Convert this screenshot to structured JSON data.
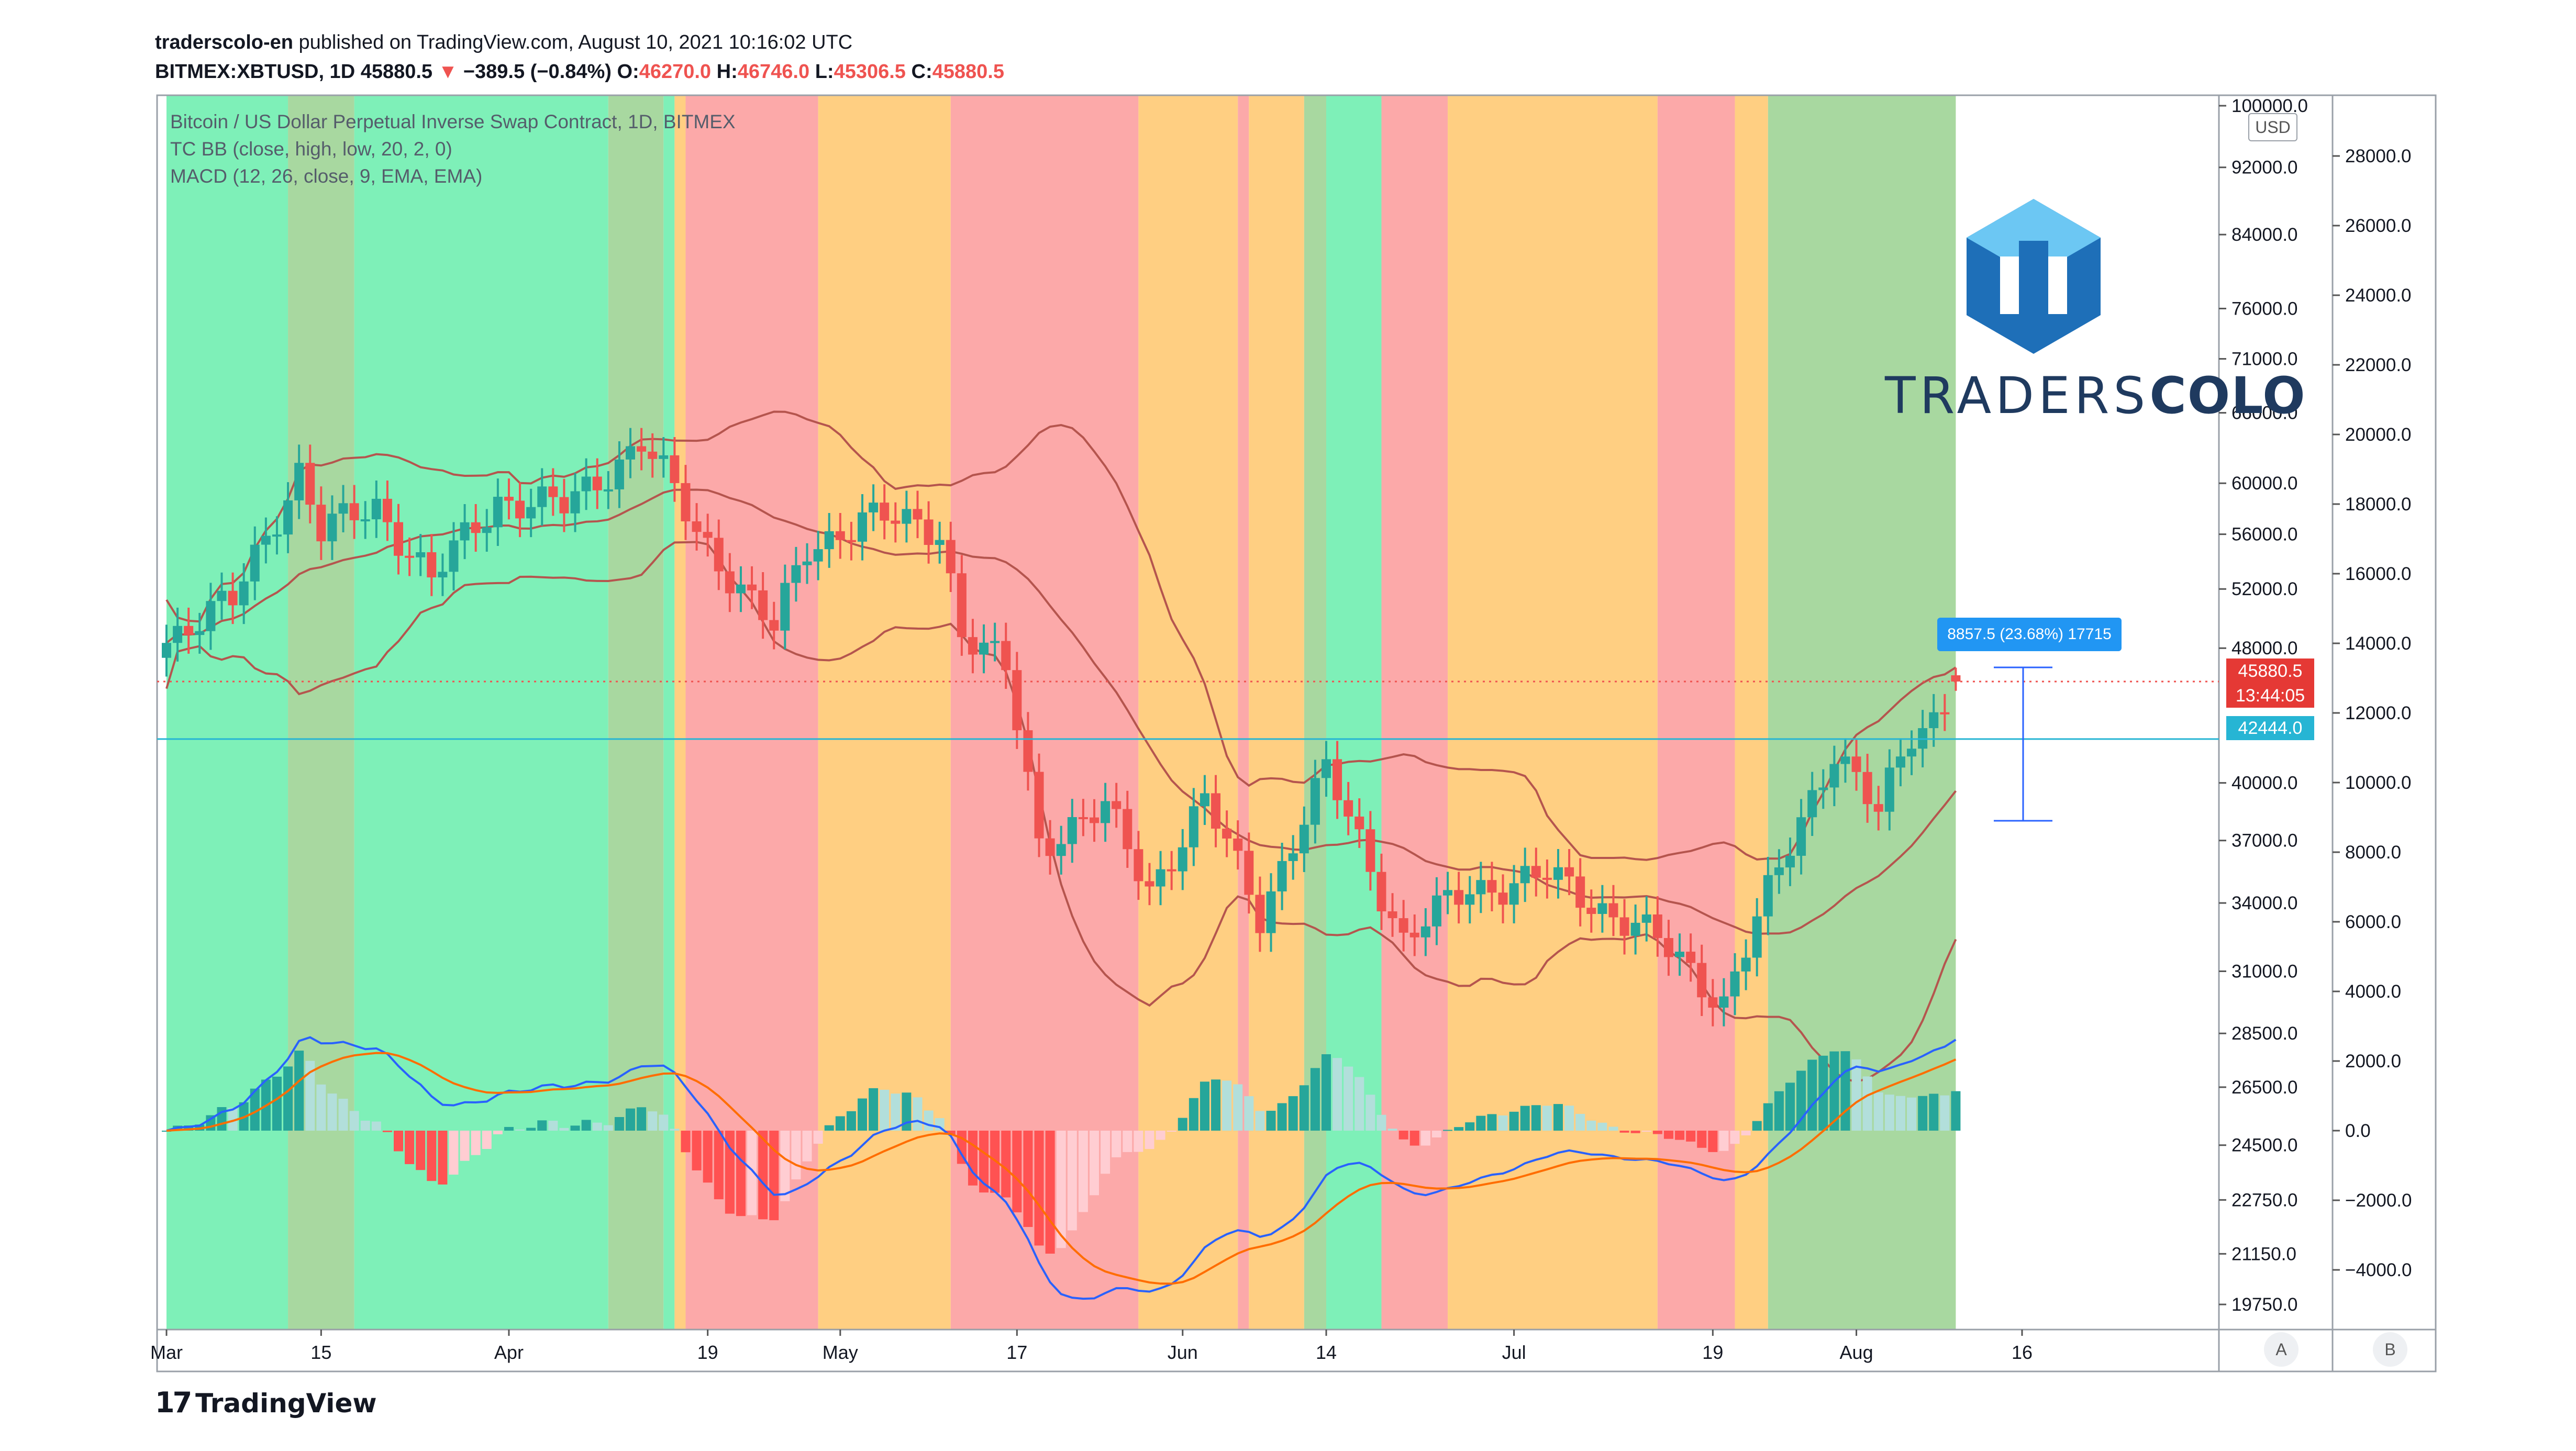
{
  "header": {
    "publisher": "traderscolo-en",
    "published_text": "published on TradingView.com, August 10, 2021 10:16:02 UTC",
    "symbol": "BITMEX:XBTUSD, 1D",
    "last": "45880.5",
    "change": "−389.5 (−0.84%)",
    "open_label": "O:",
    "open": "46270.0",
    "high_label": "H:",
    "high": "46746.0",
    "low_label": "L:",
    "low": "45306.5",
    "close_label": "C:",
    "close": "45880.5"
  },
  "legend": {
    "title": "Bitcoin / US Dollar Perpetual Inverse Swap Contract, 1D, BITMEX",
    "bb": "TC BB (close, high, low, 20, 2, 0)",
    "macd": "MACD (12, 26, close, 9, EMA, EMA)"
  },
  "price_axis": {
    "currency": "USD",
    "ticks": [
      "100000.0",
      "92000.0",
      "84000.0",
      "76000.0",
      "71000.0",
      "66000.0",
      "60000.0",
      "56000.0",
      "52000.0",
      "48000.0",
      "40000.0",
      "37000.0",
      "34000.0",
      "31000.0",
      "28500.0",
      "26500.0",
      "24500.0",
      "22750.0",
      "21150.0",
      "19750.0"
    ]
  },
  "macd_axis": {
    "ticks": [
      "28000.0",
      "26000.0",
      "24000.0",
      "22000.0",
      "20000.0",
      "18000.0",
      "16000.0",
      "14000.0",
      "12000.0",
      "10000.0",
      "8000.0",
      "6000.0",
      "4000.0",
      "2000.0",
      "0.0",
      "−2000.0",
      "−4000.0"
    ]
  },
  "price_labels": {
    "last_price": "45880.5",
    "countdown": "13:44:05",
    "hline_price": "42444.0",
    "measure": "8857.5 (23.68%) 17715"
  },
  "x_axis": {
    "ticks": [
      "Mar",
      "15",
      "Apr",
      "19",
      "May",
      "17",
      "Jun",
      "14",
      "Jul",
      "19",
      "Aug",
      "16"
    ]
  },
  "scale_buttons": {
    "a": "A",
    "b": "B"
  },
  "branding": {
    "logo_light": "TRADERS",
    "logo_bold": "COLO",
    "footer": "TradingView",
    "footer_mark": "17"
  },
  "colors": {
    "up": "#26a69a",
    "down": "#ef5350",
    "band_green": "#7ef0b8",
    "band_dkgreen": "#a8d8a0",
    "band_red": "#fca9a9",
    "band_orange": "#ffcf82",
    "bb": "#b5554e",
    "macd": "#2962ff",
    "signal": "#ff6d00",
    "hline": "#26b5d4"
  },
  "chart_data": {
    "type": "candlestick",
    "title": "Bitcoin / US Dollar Perpetual Inverse Swap Contract, 1D, BITMEX",
    "x_start": "2021-03-01",
    "x_end": "2021-08-10",
    "y_scale": "log",
    "y_range": [
      19500,
      100000
    ],
    "ohlc_close_path": [
      {
        "date": "2021-03-01",
        "close": 48800
      },
      {
        "date": "2021-03-07",
        "close": 51000
      },
      {
        "date": "2021-03-13",
        "close": 61000
      },
      {
        "date": "2021-03-15",
        "close": 56000
      },
      {
        "date": "2021-03-20",
        "close": 58300
      },
      {
        "date": "2021-03-25",
        "close": 52500
      },
      {
        "date": "2021-03-31",
        "close": 58800
      },
      {
        "date": "2021-04-06",
        "close": 58000
      },
      {
        "date": "2021-04-13",
        "close": 63500
      },
      {
        "date": "2021-04-18",
        "close": 56200
      },
      {
        "date": "2021-04-25",
        "close": 49100
      },
      {
        "date": "2021-04-28",
        "close": 55000
      },
      {
        "date": "2021-05-03",
        "close": 57200
      },
      {
        "date": "2021-05-10",
        "close": 56500
      },
      {
        "date": "2021-05-12",
        "close": 49000
      },
      {
        "date": "2021-05-16",
        "close": 46500
      },
      {
        "date": "2021-05-19",
        "close": 37000
      },
      {
        "date": "2021-05-25",
        "close": 38500
      },
      {
        "date": "2021-05-29",
        "close": 34700
      },
      {
        "date": "2021-06-03",
        "close": 38900
      },
      {
        "date": "2021-06-08",
        "close": 33500
      },
      {
        "date": "2021-06-14",
        "close": 40500
      },
      {
        "date": "2021-06-21",
        "close": 32300
      },
      {
        "date": "2021-06-27",
        "close": 34700
      },
      {
        "date": "2021-07-04",
        "close": 35200
      },
      {
        "date": "2021-07-12",
        "close": 33000
      },
      {
        "date": "2021-07-20",
        "close": 29800
      },
      {
        "date": "2021-07-25",
        "close": 35400
      },
      {
        "date": "2021-07-30",
        "close": 42000
      },
      {
        "date": "2021-08-03",
        "close": 38200
      },
      {
        "date": "2021-08-06",
        "close": 42800
      },
      {
        "date": "2021-08-08",
        "close": 43800
      },
      {
        "date": "2021-08-10",
        "close": 45880.5
      }
    ],
    "last_candle": {
      "open": 46270.0,
      "high": 46746.0,
      "low": 45306.5,
      "close": 45880.5
    },
    "horizontal_line": 42444.0,
    "background_regimes": [
      {
        "from": "2021-03-01",
        "to": "2021-03-12",
        "state": "green"
      },
      {
        "from": "2021-03-12",
        "to": "2021-03-18",
        "state": "dark-green"
      },
      {
        "from": "2021-03-18",
        "to": "2021-04-10",
        "state": "green"
      },
      {
        "from": "2021-04-10",
        "to": "2021-04-15",
        "state": "dark-green"
      },
      {
        "from": "2021-04-15",
        "to": "2021-04-16",
        "state": "green"
      },
      {
        "from": "2021-04-16",
        "to": "2021-04-17",
        "state": "orange"
      },
      {
        "from": "2021-04-17",
        "to": "2021-04-29",
        "state": "red"
      },
      {
        "from": "2021-04-29",
        "to": "2021-05-11",
        "state": "orange"
      },
      {
        "from": "2021-05-11",
        "to": "2021-05-28",
        "state": "red"
      },
      {
        "from": "2021-05-28",
        "to": "2021-06-06",
        "state": "orange"
      },
      {
        "from": "2021-06-06",
        "to": "2021-06-07",
        "state": "red"
      },
      {
        "from": "2021-06-07",
        "to": "2021-06-12",
        "state": "orange"
      },
      {
        "from": "2021-06-12",
        "to": "2021-06-14",
        "state": "dark-green"
      },
      {
        "from": "2021-06-14",
        "to": "2021-06-19",
        "state": "green"
      },
      {
        "from": "2021-06-19",
        "to": "2021-06-25",
        "state": "red"
      },
      {
        "from": "2021-06-25",
        "to": "2021-07-14",
        "state": "orange"
      },
      {
        "from": "2021-07-14",
        "to": "2021-07-21",
        "state": "red"
      },
      {
        "from": "2021-07-21",
        "to": "2021-07-24",
        "state": "orange"
      },
      {
        "from": "2021-07-24",
        "to": "2021-08-10",
        "state": "dark-green"
      }
    ],
    "macd_range": [
      -5000,
      29000
    ]
  }
}
